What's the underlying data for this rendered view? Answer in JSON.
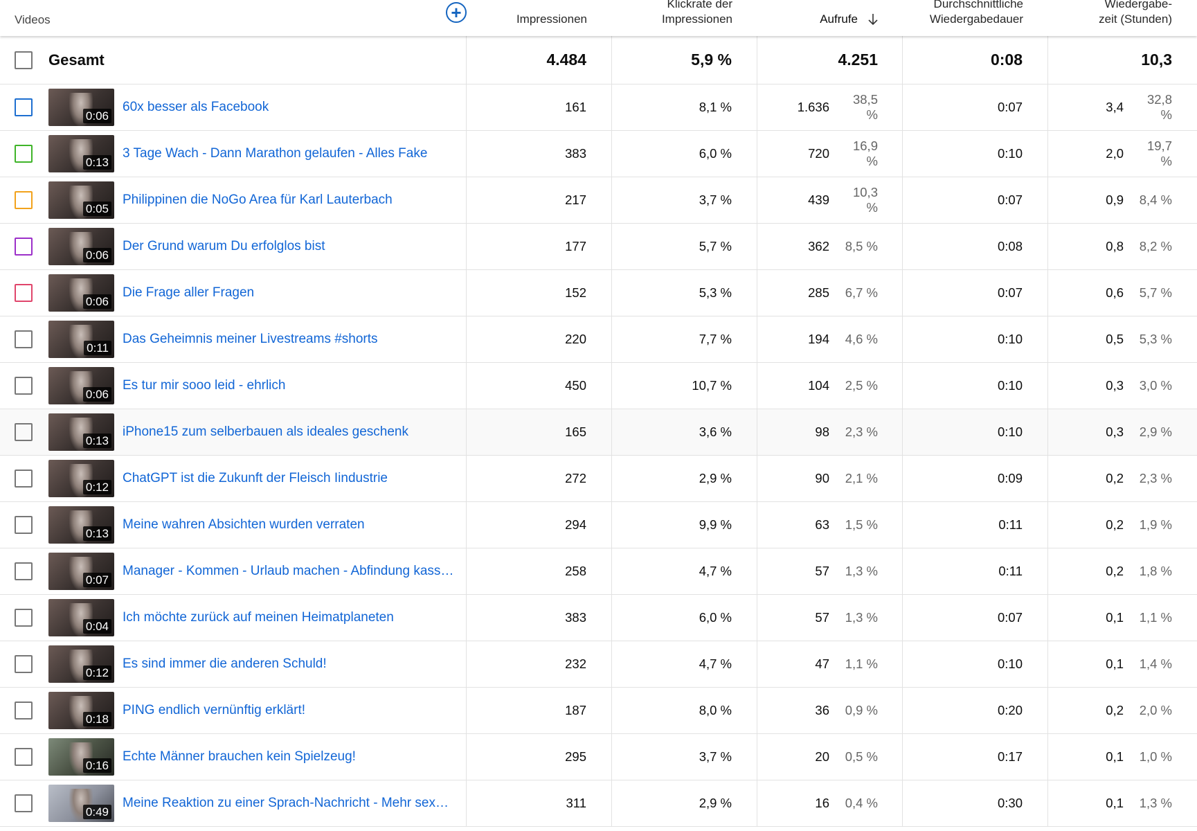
{
  "header": {
    "videos": "Videos",
    "add_column_icon": "plus-circle-icon",
    "impressions": "Impressionen",
    "ctr_line1": "Klickrate der",
    "ctr_line2": "Impressionen",
    "views": "Aufrufe",
    "sort_icon": "arrow-down-icon",
    "avg_line1": "Durchschnittliche",
    "avg_line2": "Wiedergabedauer",
    "watch_line1": "Wiedergabe-",
    "watch_line2": "zeit (Stunden)"
  },
  "total": {
    "label": "Gesamt",
    "impressions": "4.484",
    "ctr": "5,9 %",
    "views": "4.251",
    "avg_duration": "0:08",
    "watch_time": "10,3"
  },
  "rows": [
    {
      "duration": "0:06",
      "title": "60x besser als Facebook",
      "impressions": "161",
      "ctr": "8,1 %",
      "views": "1.636",
      "views_pct": "38,5 %",
      "avg": "0:07",
      "watch": "3,4",
      "watch_pct": "32,8 %",
      "checkbox_color": "#1e6fd0"
    },
    {
      "duration": "0:13",
      "title": "3 Tage Wach - Dann Marathon gelaufen - Alles Fake",
      "impressions": "383",
      "ctr": "6,0 %",
      "views": "720",
      "views_pct": "16,9 %",
      "avg": "0:10",
      "watch": "2,0",
      "watch_pct": "19,7 %",
      "checkbox_color": "#3fb429"
    },
    {
      "duration": "0:05",
      "title": "Philippinen die NoGo Area für Karl Lauterbach",
      "impressions": "217",
      "ctr": "3,7 %",
      "views": "439",
      "views_pct": "10,3 %",
      "avg": "0:07",
      "watch": "0,9",
      "watch_pct": "8,4 %",
      "checkbox_color": "#f2a21c"
    },
    {
      "duration": "0:06",
      "title": "Der Grund warum Du erfolglos bist",
      "impressions": "177",
      "ctr": "5,7 %",
      "views": "362",
      "views_pct": "8,5 %",
      "avg": "0:08",
      "watch": "0,8",
      "watch_pct": "8,2 %",
      "checkbox_color": "#9c2fc9"
    },
    {
      "duration": "0:06",
      "title": "Die Frage aller Fragen",
      "impressions": "152",
      "ctr": "5,3 %",
      "views": "285",
      "views_pct": "6,7 %",
      "avg": "0:07",
      "watch": "0,6",
      "watch_pct": "5,7 %",
      "checkbox_color": "#e0456b"
    },
    {
      "duration": "0:11",
      "title": "Das Geheimnis meiner Livestreams #shorts",
      "impressions": "220",
      "ctr": "7,7 %",
      "views": "194",
      "views_pct": "4,6 %",
      "avg": "0:10",
      "watch": "0,5",
      "watch_pct": "5,3 %",
      "checkbox_color": "#777777"
    },
    {
      "duration": "0:06",
      "title": "Es tur mir sooo leid - ehrlich",
      "impressions": "450",
      "ctr": "10,7 %",
      "views": "104",
      "views_pct": "2,5 %",
      "avg": "0:10",
      "watch": "0,3",
      "watch_pct": "3,0 %",
      "checkbox_color": "#777777"
    },
    {
      "duration": "0:13",
      "title": "iPhone15 zum selberbauen als ideales geschenk",
      "impressions": "165",
      "ctr": "3,6 %",
      "views": "98",
      "views_pct": "2,3 %",
      "avg": "0:10",
      "watch": "0,3",
      "watch_pct": "2,9 %",
      "checkbox_color": "#777777"
    },
    {
      "duration": "0:12",
      "title": "ChatGPT ist die Zukunft der Fleisch Iindustrie",
      "impressions": "272",
      "ctr": "2,9 %",
      "views": "90",
      "views_pct": "2,1 %",
      "avg": "0:09",
      "watch": "0,2",
      "watch_pct": "2,3 %",
      "checkbox_color": "#777777"
    },
    {
      "duration": "0:13",
      "title": "Meine wahren Absichten wurden verraten",
      "impressions": "294",
      "ctr": "9,9 %",
      "views": "63",
      "views_pct": "1,5 %",
      "avg": "0:11",
      "watch": "0,2",
      "watch_pct": "1,9 %",
      "checkbox_color": "#777777"
    },
    {
      "duration": "0:07",
      "title": "Manager - Kommen - Urlaub machen - Abfindung kassi…",
      "impressions": "258",
      "ctr": "4,7 %",
      "views": "57",
      "views_pct": "1,3 %",
      "avg": "0:11",
      "watch": "0,2",
      "watch_pct": "1,8 %",
      "checkbox_color": "#777777"
    },
    {
      "duration": "0:04",
      "title": "Ich möchte zurück auf meinen Heimatplaneten",
      "impressions": "383",
      "ctr": "6,0 %",
      "views": "57",
      "views_pct": "1,3 %",
      "avg": "0:07",
      "watch": "0,1",
      "watch_pct": "1,1 %",
      "checkbox_color": "#777777"
    },
    {
      "duration": "0:12",
      "title": "Es sind immer die anderen Schuld!",
      "impressions": "232",
      "ctr": "4,7 %",
      "views": "47",
      "views_pct": "1,1 %",
      "avg": "0:10",
      "watch": "0,1",
      "watch_pct": "1,4 %",
      "checkbox_color": "#777777"
    },
    {
      "duration": "0:18",
      "title": "PING endlich vernünftig erklärt!",
      "impressions": "187",
      "ctr": "8,0 %",
      "views": "36",
      "views_pct": "0,9 %",
      "avg": "0:20",
      "watch": "0,2",
      "watch_pct": "2,0 %",
      "checkbox_color": "#777777"
    },
    {
      "duration": "0:16",
      "title": "Echte Männer brauchen kein Spielzeug!",
      "impressions": "295",
      "ctr": "3,7 %",
      "views": "20",
      "views_pct": "0,5 %",
      "avg": "0:17",
      "watch": "0,1",
      "watch_pct": "1,0 %",
      "checkbox_color": "#777777"
    },
    {
      "duration": "0:49",
      "title": "Meine Reaktion zu einer Sprach-Nachricht - Mehr sexy …",
      "impressions": "311",
      "ctr": "2,9 %",
      "views": "16",
      "views_pct": "0,4 %",
      "avg": "0:30",
      "watch": "0,1",
      "watch_pct": "1,3 %",
      "checkbox_color": "#777777"
    }
  ]
}
